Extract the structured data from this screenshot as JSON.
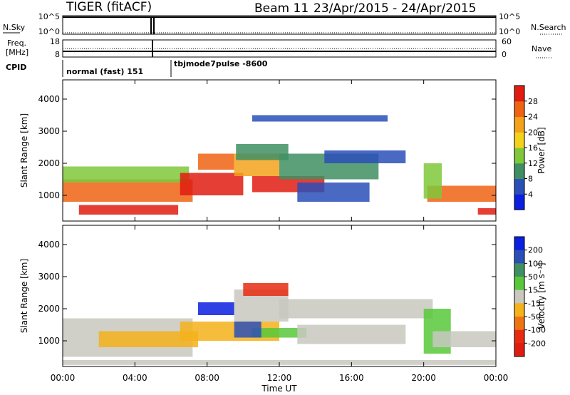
{
  "header": {
    "radar": "TIGER (fitACF)",
    "beam": "Beam 11",
    "date_range": "23/Apr/2015 - 24/Apr/2015"
  },
  "noise_panel": {
    "left_label": "N.Sky",
    "right_label": "N.Search",
    "left_ticks": [
      "10^5",
      "10^0"
    ],
    "right_ticks": [
      "10^5",
      "10^0"
    ]
  },
  "freq_panel": {
    "left_label_line1": "Freq.",
    "left_label_line2": "[MHz]",
    "right_label": "Nave",
    "left_ticks": [
      "18",
      "8"
    ],
    "right_ticks": [
      "60",
      "0"
    ]
  },
  "cpid_panel": {
    "label": "CPID",
    "modes": [
      "normal (fast) 151",
      "tbjmode7pulse -8600"
    ]
  },
  "x_axis": {
    "label": "Time UT",
    "ticks": [
      "00:00",
      "04:00",
      "08:00",
      "12:00",
      "16:00",
      "20:00",
      "00:00"
    ],
    "range_hours": [
      0,
      24
    ]
  },
  "chart_data": [
    {
      "type": "heatmap",
      "parameter": "power",
      "ylabel": "Slant Range [km]",
      "ylim": [
        200,
        4600
      ],
      "y_ticks": [
        "1000",
        "2000",
        "3000",
        "4000"
      ],
      "colorbar_label": "Power [dB]",
      "colorbar_ticks": [
        "4",
        "8",
        "12",
        "16",
        "20",
        "24",
        "28"
      ],
      "colorbar_colors": [
        "#0a1fe0",
        "#2a4fb8",
        "#3f8f63",
        "#7fc83a",
        "#f4d21b",
        "#f4a21b",
        "#ee6413",
        "#e01c10"
      ],
      "regions": [
        {
          "t0": 0.0,
          "t1": 7.2,
          "r0": 800,
          "r1": 1500,
          "color": "#ee6413"
        },
        {
          "t0": 0.0,
          "t1": 7.0,
          "r0": 1400,
          "r1": 1900,
          "color": "#7fc83a"
        },
        {
          "t0": 0.9,
          "t1": 6.4,
          "r0": 400,
          "r1": 700,
          "color": "#e01c10"
        },
        {
          "t0": 6.5,
          "t1": 10.0,
          "r0": 1000,
          "r1": 1700,
          "color": "#e01c10"
        },
        {
          "t0": 7.5,
          "t1": 9.5,
          "r0": 1800,
          "r1": 2300,
          "color": "#ee6413"
        },
        {
          "t0": 9.5,
          "t1": 12.0,
          "r0": 1600,
          "r1": 2300,
          "color": "#f4a21b"
        },
        {
          "t0": 9.6,
          "t1": 12.5,
          "r0": 2100,
          "r1": 2600,
          "color": "#3f8f63"
        },
        {
          "t0": 10.5,
          "t1": 14.5,
          "r0": 1100,
          "r1": 1600,
          "color": "#e01c10"
        },
        {
          "t0": 12.0,
          "t1": 17.5,
          "r0": 1500,
          "r1": 2300,
          "color": "#3f8f63"
        },
        {
          "t0": 13.0,
          "t1": 17.0,
          "r0": 800,
          "r1": 1400,
          "color": "#2a4fb8"
        },
        {
          "t0": 14.5,
          "t1": 19.0,
          "r0": 2000,
          "r1": 2400,
          "color": "#2a4fb8"
        },
        {
          "t0": 10.5,
          "t1": 18.0,
          "r0": 3300,
          "r1": 3500,
          "color": "#2a4fb8"
        },
        {
          "t0": 20.2,
          "t1": 24.0,
          "r0": 800,
          "r1": 1300,
          "color": "#ee6413"
        },
        {
          "t0": 20.0,
          "t1": 21.0,
          "r0": 900,
          "r1": 2000,
          "color": "#7fc83a"
        },
        {
          "t0": 23.0,
          "t1": 24.0,
          "r0": 400,
          "r1": 600,
          "color": "#e01c10"
        }
      ]
    },
    {
      "type": "heatmap",
      "parameter": "velocity",
      "ylabel": "Slant Range [km]",
      "ylim": [
        200,
        4600
      ],
      "y_ticks": [
        "1000",
        "2000",
        "3000",
        "4000"
      ],
      "colorbar_label": "Velocity [m s⁻¹]",
      "colorbar_ticks": [
        "200",
        "100",
        "50",
        "15",
        "-15",
        "-50",
        "-100",
        "-200"
      ],
      "colorbar_colors": [
        "#0a1fe0",
        "#2a4fb8",
        "#3f8f63",
        "#58c83a",
        "#c8c8c0",
        "#f4b21b",
        "#ee7413",
        "#e82a10",
        "#e01c10"
      ],
      "regions": [
        {
          "t0": 0.0,
          "t1": 7.2,
          "r0": 500,
          "r1": 1700,
          "color": "#c8c8c0"
        },
        {
          "t0": 2.0,
          "t1": 7.5,
          "r0": 800,
          "r1": 1300,
          "color": "#f4b21b"
        },
        {
          "t0": 6.5,
          "t1": 12.0,
          "r0": 1000,
          "r1": 1600,
          "color": "#f4b21b"
        },
        {
          "t0": 7.5,
          "t1": 9.5,
          "r0": 1800,
          "r1": 2200,
          "color": "#0a1fe0"
        },
        {
          "t0": 9.5,
          "t1": 12.5,
          "r0": 1600,
          "r1": 2600,
          "color": "#c8c8c0"
        },
        {
          "t0": 10.0,
          "t1": 12.5,
          "r0": 2400,
          "r1": 2800,
          "color": "#e82a10"
        },
        {
          "t0": 10.5,
          "t1": 13.5,
          "r0": 1100,
          "r1": 1400,
          "color": "#58c83a"
        },
        {
          "t0": 9.5,
          "t1": 11.0,
          "r0": 1100,
          "r1": 1600,
          "color": "#2a4fb8"
        },
        {
          "t0": 12.0,
          "t1": 20.5,
          "r0": 1700,
          "r1": 2300,
          "color": "#c8c8c0"
        },
        {
          "t0": 13.0,
          "t1": 19.0,
          "r0": 900,
          "r1": 1500,
          "color": "#c8c8c0"
        },
        {
          "t0": 20.0,
          "t1": 21.5,
          "r0": 600,
          "r1": 2000,
          "color": "#58c83a"
        },
        {
          "t0": 20.5,
          "t1": 24.0,
          "r0": 800,
          "r1": 1300,
          "color": "#c8c8c0"
        },
        {
          "t0": 0.0,
          "t1": 24.0,
          "r0": 250,
          "r1": 400,
          "color": "#c8c8c0"
        }
      ]
    }
  ]
}
